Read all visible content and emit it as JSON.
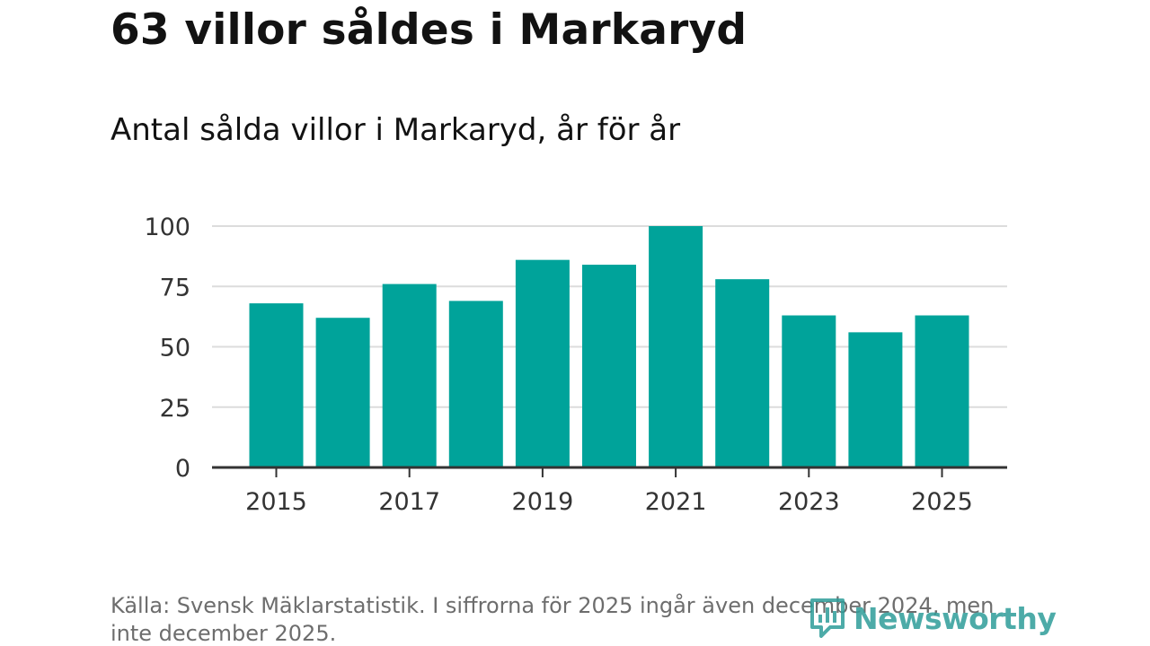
{
  "title": "63 villor såldes i Markaryd",
  "chart_data": {
    "type": "bar",
    "title": "Antal sålda villor i Markaryd, år för år",
    "categories": [
      "2015",
      "2016",
      "2017",
      "2018",
      "2019",
      "2020",
      "2021",
      "2022",
      "2023",
      "2024",
      "2025"
    ],
    "values": [
      68,
      62,
      76,
      69,
      86,
      84,
      100,
      78,
      63,
      56,
      63
    ],
    "x_tick_labels": [
      "2015",
      "2017",
      "2019",
      "2021",
      "2023",
      "2025"
    ],
    "y_ticks": [
      0,
      25,
      50,
      75,
      100
    ],
    "ylim": [
      0,
      100
    ],
    "xlabel": "",
    "ylabel": "",
    "grid": true,
    "bar_color": "#00a39a"
  },
  "source": "Källa: Svensk Mäklarstatistik. I siffrorna för 2025 ingår även december 2024, men inte december 2025.",
  "logo": {
    "text": "Newsworthy",
    "icon": "newsworthy-logo-icon"
  }
}
